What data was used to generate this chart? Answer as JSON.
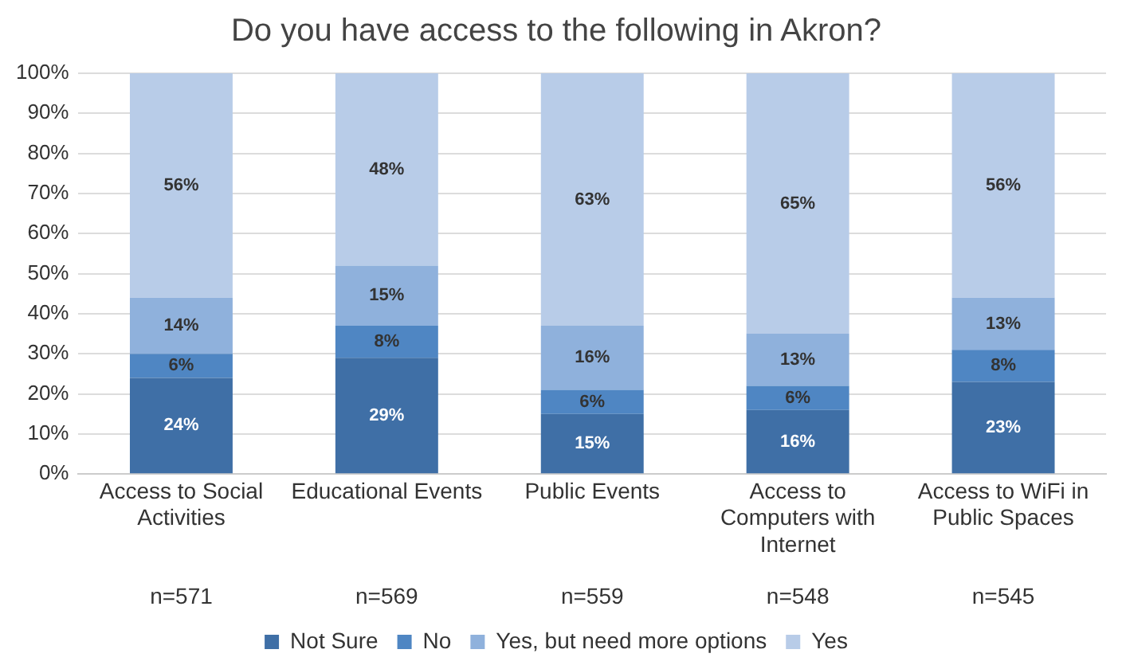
{
  "chart_data": {
    "type": "bar",
    "title": "Do you have access to the following in Akron?",
    "categories": [
      "Access to Social Activities",
      "Educational Events",
      "Public Events",
      "Access to Computers with Internet",
      "Access to WiFi in Public Spaces"
    ],
    "series": [
      {
        "name": "Not Sure",
        "color": "#3f6fa6",
        "values": [
          24,
          29,
          15,
          16,
          23
        ],
        "value_labels": [
          "24%",
          "29%",
          "15%",
          "16%",
          "23%"
        ]
      },
      {
        "name": "No",
        "color": "#4f86c3",
        "values": [
          6,
          8,
          6,
          6,
          8
        ],
        "value_labels": [
          "6%",
          "8%",
          "6%",
          "6%",
          "8%"
        ]
      },
      {
        "name": "Yes, but need more options",
        "color": "#8fb1dc",
        "values": [
          14,
          15,
          16,
          13,
          13
        ],
        "value_labels": [
          "14%",
          "15%",
          "16%",
          "13%",
          "13%"
        ]
      },
      {
        "name": "Yes",
        "color": "#b8cce8",
        "values": [
          56,
          48,
          63,
          65,
          56
        ],
        "value_labels": [
          "56%",
          "48%",
          "63%",
          "65%",
          "56%"
        ]
      }
    ],
    "stacked": true,
    "grid": "y",
    "legend": "bottom",
    "ylim": [
      0,
      100
    ],
    "yticks": [
      {
        "value": 0,
        "label": "0%"
      },
      {
        "value": 10,
        "label": "10%"
      },
      {
        "value": 20,
        "label": "20%"
      },
      {
        "value": 30,
        "label": "30%"
      },
      {
        "value": 40,
        "label": "40%"
      },
      {
        "value": 50,
        "label": "50%"
      },
      {
        "value": 60,
        "label": "60%"
      },
      {
        "value": 70,
        "label": "70%"
      },
      {
        "value": 80,
        "label": "80%"
      },
      {
        "value": 90,
        "label": "90%"
      },
      {
        "value": 100,
        "label": "100%"
      }
    ],
    "annotations": [
      "n=571",
      "n=569",
      "n=559",
      "n=548",
      "n=545"
    ]
  }
}
